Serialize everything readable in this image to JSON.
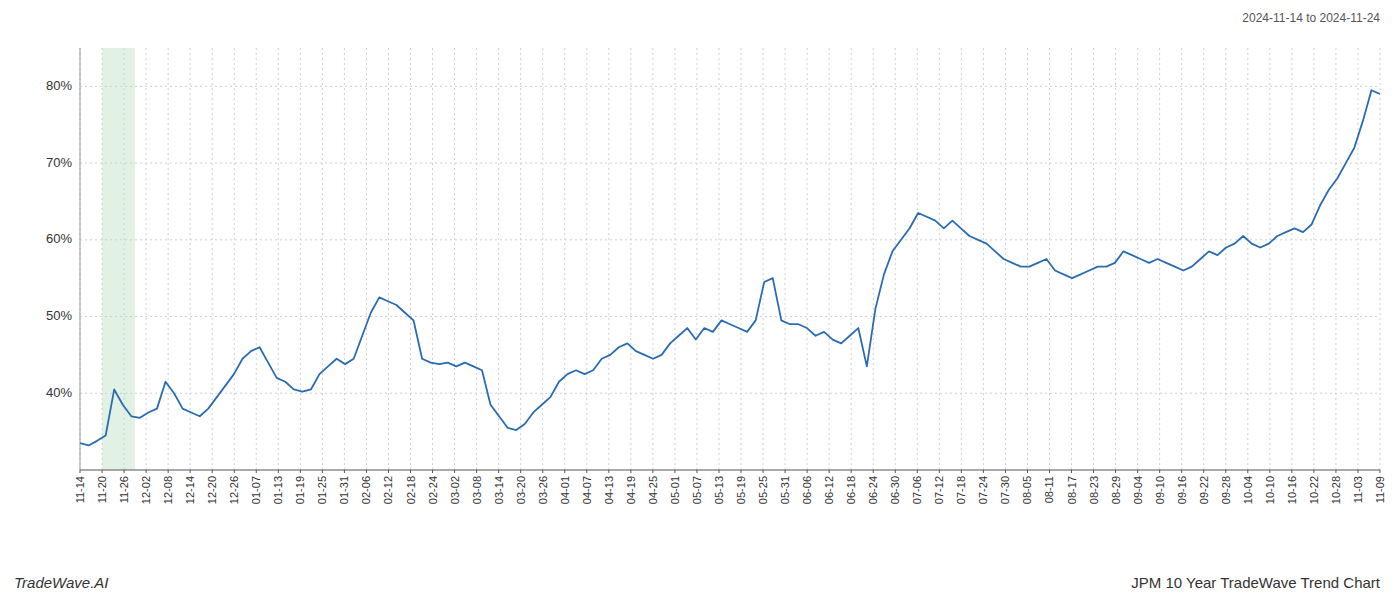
{
  "chart_data": {
    "type": "line",
    "title": "JPM 10 Year TradeWave Trend Chart",
    "subtitle": "2024-11-14 to 2024-11-24",
    "annotations": [
      "TradeWave.AI"
    ],
    "color": "#2b6cb0",
    "grid": true,
    "shaded_band": {
      "start": 1,
      "end": 2.5,
      "color": "#d4edda"
    },
    "xlim": [
      0,
      59
    ],
    "xticks": [
      {
        "value": 0,
        "label": "11-14"
      },
      {
        "value": 1,
        "label": "11-20"
      },
      {
        "value": 2,
        "label": "11-26"
      },
      {
        "value": 3,
        "label": "12-02"
      },
      {
        "value": 4,
        "label": "12-08"
      },
      {
        "value": 5,
        "label": "12-14"
      },
      {
        "value": 6,
        "label": "12-20"
      },
      {
        "value": 7,
        "label": "12-26"
      },
      {
        "value": 8,
        "label": "01-07"
      },
      {
        "value": 9,
        "label": "01-13"
      },
      {
        "value": 10,
        "label": "01-19"
      },
      {
        "value": 11,
        "label": "01-25"
      },
      {
        "value": 12,
        "label": "01-31"
      },
      {
        "value": 13,
        "label": "02-06"
      },
      {
        "value": 14,
        "label": "02-12"
      },
      {
        "value": 15,
        "label": "02-18"
      },
      {
        "value": 16,
        "label": "02-24"
      },
      {
        "value": 17,
        "label": "03-02"
      },
      {
        "value": 18,
        "label": "03-08"
      },
      {
        "value": 19,
        "label": "03-14"
      },
      {
        "value": 20,
        "label": "03-20"
      },
      {
        "value": 21,
        "label": "03-26"
      },
      {
        "value": 22,
        "label": "04-01"
      },
      {
        "value": 23,
        "label": "04-07"
      },
      {
        "value": 24,
        "label": "04-13"
      },
      {
        "value": 25,
        "label": "04-19"
      },
      {
        "value": 26,
        "label": "04-25"
      },
      {
        "value": 27,
        "label": "05-01"
      },
      {
        "value": 28,
        "label": "05-07"
      },
      {
        "value": 29,
        "label": "05-13"
      },
      {
        "value": 30,
        "label": "05-19"
      },
      {
        "value": 31,
        "label": "05-25"
      },
      {
        "value": 32,
        "label": "05-31"
      },
      {
        "value": 33,
        "label": "06-06"
      },
      {
        "value": 34,
        "label": "06-12"
      },
      {
        "value": 35,
        "label": "06-18"
      },
      {
        "value": 36,
        "label": "06-24"
      },
      {
        "value": 37,
        "label": "06-30"
      },
      {
        "value": 38,
        "label": "07-06"
      },
      {
        "value": 39,
        "label": "07-12"
      },
      {
        "value": 40,
        "label": "07-18"
      },
      {
        "value": 41,
        "label": "07-24"
      },
      {
        "value": 42,
        "label": "07-30"
      },
      {
        "value": 43,
        "label": "08-05"
      },
      {
        "value": 44,
        "label": "08-11"
      },
      {
        "value": 45,
        "label": "08-17"
      },
      {
        "value": 46,
        "label": "08-23"
      },
      {
        "value": 47,
        "label": "08-29"
      },
      {
        "value": 48,
        "label": "09-04"
      },
      {
        "value": 49,
        "label": "09-10"
      },
      {
        "value": 50,
        "label": "09-16"
      },
      {
        "value": 51,
        "label": "09-22"
      },
      {
        "value": 52,
        "label": "09-28"
      },
      {
        "value": 53,
        "label": "10-04"
      },
      {
        "value": 54,
        "label": "10-10"
      },
      {
        "value": 55,
        "label": "10-16"
      },
      {
        "value": 56,
        "label": "10-22"
      },
      {
        "value": 57,
        "label": "10-28"
      },
      {
        "value": 58,
        "label": "11-03"
      },
      {
        "value": 59,
        "label": "11-09"
      }
    ],
    "ylim": [
      30,
      85
    ],
    "yticks": [
      {
        "value": 40,
        "label": "40%"
      },
      {
        "value": 50,
        "label": "50%"
      },
      {
        "value": 60,
        "label": "60%"
      },
      {
        "value": 70,
        "label": "70%"
      },
      {
        "value": 80,
        "label": "80%"
      }
    ],
    "values": [
      33.5,
      33.2,
      33.8,
      34.5,
      40.5,
      38.5,
      37.0,
      36.8,
      37.5,
      38.0,
      41.5,
      40.0,
      38.0,
      37.5,
      37.0,
      38.0,
      39.5,
      41.0,
      42.5,
      44.5,
      45.5,
      46.0,
      44.0,
      42.0,
      41.5,
      40.5,
      40.2,
      40.5,
      42.5,
      43.5,
      44.5,
      43.8,
      44.5,
      47.5,
      50.5,
      52.5,
      52.0,
      51.5,
      50.5,
      49.5,
      44.5,
      44.0,
      43.8,
      44.0,
      43.5,
      44.0,
      43.5,
      43.0,
      38.5,
      37.0,
      35.5,
      35.2,
      36.0,
      37.5,
      38.5,
      39.5,
      41.5,
      42.5,
      43.0,
      42.5,
      43.0,
      44.5,
      45.0,
      46.0,
      46.5,
      45.5,
      45.0,
      44.5,
      45.0,
      46.5,
      47.5,
      48.5,
      47.0,
      48.5,
      48.0,
      49.5,
      49.0,
      48.5,
      48.0,
      49.5,
      54.5,
      55.0,
      49.5,
      49.0,
      49.0,
      48.5,
      47.5,
      48.0,
      47.0,
      46.5,
      47.5,
      48.5,
      43.5,
      51.0,
      55.5,
      58.5,
      60.0,
      61.5,
      63.5,
      63.0,
      62.5,
      61.5,
      62.5,
      61.5,
      60.5,
      60.0,
      59.5,
      58.5,
      57.5,
      57.0,
      56.5,
      56.5,
      57.0,
      57.5,
      56.0,
      55.5,
      55.0,
      55.5,
      56.0,
      56.5,
      56.5,
      57.0,
      58.5,
      58.0,
      57.5,
      57.0,
      57.5,
      57.0,
      56.5,
      56.0,
      56.5,
      57.5,
      58.5,
      58.0,
      59.0,
      59.5,
      60.5,
      59.5,
      59.0,
      59.5,
      60.5,
      61.0,
      61.5,
      61.0,
      62.0,
      64.5,
      66.5,
      68.0,
      70.0,
      72.0,
      75.5,
      79.5,
      79.0
    ]
  }
}
